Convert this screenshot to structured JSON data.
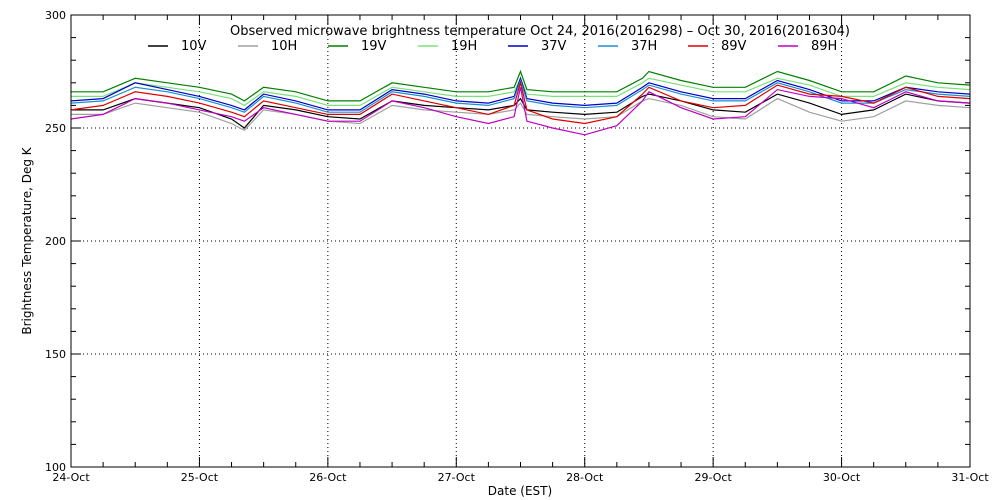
{
  "chart_data": {
    "type": "line",
    "title": "Observed microwave brightness temperature Oct 24, 2016(2016298) – Oct 30, 2016(2016304)",
    "xlabel": "Date (EST)",
    "ylabel": "Brightness Temperature, Deg K",
    "xlim": [
      0,
      7
    ],
    "ylim": [
      100,
      300
    ],
    "x_tick_labels": [
      "24-Oct",
      "25-Oct",
      "26-Oct",
      "27-Oct",
      "28-Oct",
      "29-Oct",
      "30-Oct",
      "31-Oct"
    ],
    "y_tick_labels": [
      "100",
      "150",
      "200",
      "250",
      "300"
    ],
    "grid": "dotted",
    "legend": "top",
    "x": [
      0.0,
      0.25,
      0.5,
      0.75,
      1.0,
      1.25,
      1.35,
      1.5,
      1.75,
      2.0,
      2.25,
      2.5,
      2.75,
      3.0,
      3.25,
      3.45,
      3.5,
      3.55,
      3.75,
      4.0,
      4.25,
      4.45,
      4.5,
      4.75,
      5.0,
      5.25,
      5.5,
      5.75,
      6.0,
      6.25,
      6.5,
      6.75,
      7.0
    ],
    "series": [
      {
        "name": "10V",
        "color": "#000000",
        "values": [
          258,
          258,
          263,
          261,
          259,
          254,
          250,
          260,
          258,
          255,
          254,
          262,
          260,
          259,
          258,
          260,
          263,
          258,
          257,
          256,
          257,
          264,
          265,
          262,
          258,
          257,
          265,
          261,
          256,
          258,
          265,
          262,
          261
        ]
      },
      {
        "name": "10H",
        "color": "#a0a0a0",
        "values": [
          256,
          256,
          261,
          259,
          257,
          252,
          249,
          258,
          256,
          253,
          252,
          260,
          258,
          257,
          256,
          258,
          261,
          256,
          255,
          254,
          255,
          262,
          263,
          260,
          255,
          254,
          263,
          257,
          253,
          255,
          262,
          260,
          259
        ]
      },
      {
        "name": "19V",
        "color": "#008000",
        "values": [
          266,
          266,
          272,
          270,
          268,
          265,
          262,
          268,
          266,
          262,
          262,
          270,
          268,
          266,
          266,
          268,
          275,
          267,
          266,
          266,
          266,
          272,
          275,
          271,
          268,
          268,
          275,
          271,
          266,
          266,
          273,
          270,
          269
        ]
      },
      {
        "name": "19H",
        "color": "#7ae07a",
        "values": [
          264,
          264,
          270,
          268,
          266,
          263,
          260,
          266,
          264,
          260,
          260,
          268,
          266,
          264,
          264,
          266,
          272,
          265,
          264,
          264,
          264,
          270,
          272,
          269,
          266,
          266,
          272,
          269,
          264,
          264,
          270,
          268,
          267
        ]
      },
      {
        "name": "37V",
        "color": "#0000c8",
        "values": [
          262,
          263,
          270,
          267,
          264,
          260,
          258,
          265,
          262,
          258,
          258,
          267,
          265,
          262,
          261,
          264,
          272,
          263,
          261,
          260,
          261,
          268,
          270,
          266,
          263,
          263,
          271,
          267,
          262,
          262,
          268,
          266,
          265
        ]
      },
      {
        "name": "37H",
        "color": "#1a8fd0",
        "values": [
          261,
          262,
          268,
          266,
          263,
          259,
          257,
          264,
          261,
          257,
          257,
          266,
          264,
          261,
          260,
          263,
          271,
          262,
          260,
          259,
          260,
          267,
          269,
          265,
          262,
          262,
          270,
          266,
          261,
          261,
          267,
          265,
          264
        ]
      },
      {
        "name": "89V",
        "color": "#e00000",
        "values": [
          258,
          260,
          266,
          264,
          261,
          257,
          255,
          262,
          259,
          256,
          256,
          265,
          262,
          259,
          256,
          260,
          270,
          258,
          254,
          252,
          255,
          265,
          268,
          262,
          259,
          260,
          269,
          265,
          264,
          261,
          268,
          264,
          263
        ]
      },
      {
        "name": "89H",
        "color": "#c000c0",
        "values": [
          254,
          256,
          263,
          261,
          258,
          255,
          253,
          259,
          256,
          253,
          253,
          262,
          259,
          255,
          252,
          255,
          268,
          253,
          250,
          247,
          251,
          262,
          266,
          259,
          254,
          255,
          267,
          264,
          263,
          259,
          266,
          262,
          261
        ]
      }
    ]
  }
}
